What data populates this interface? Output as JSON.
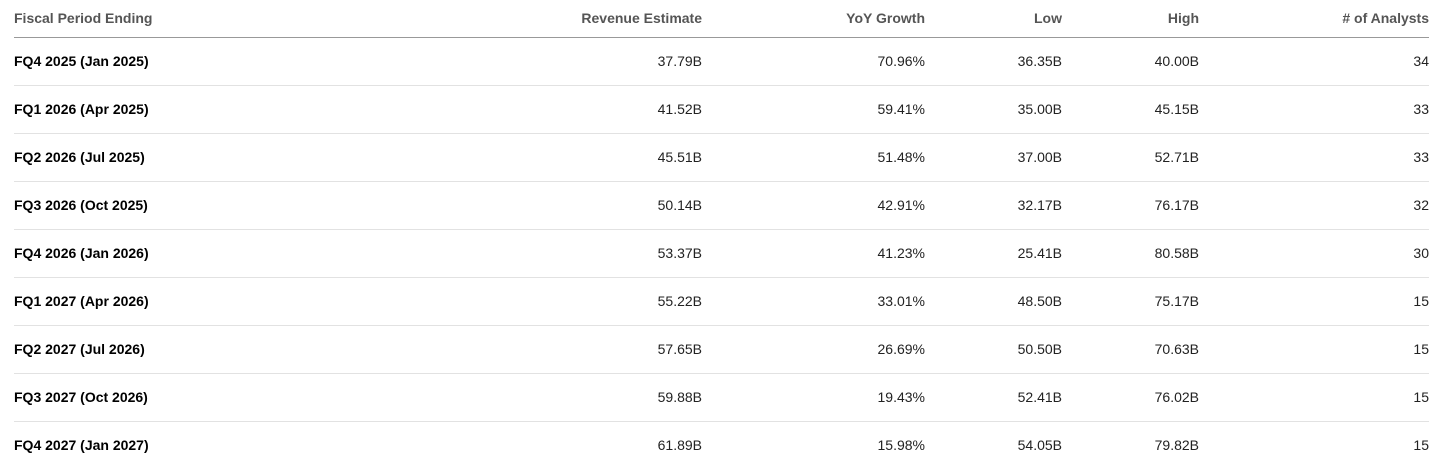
{
  "table": {
    "headers": {
      "period": "Fiscal Period Ending",
      "revenue": "Revenue Estimate",
      "growth": "YoY Growth",
      "low": "Low",
      "high": "High",
      "analysts": "# of Analysts"
    },
    "rows": [
      {
        "period": "FQ4 2025 (Jan 2025)",
        "revenue": "37.79B",
        "growth": "70.96%",
        "low": "36.35B",
        "high": "40.00B",
        "analysts": "34"
      },
      {
        "period": "FQ1 2026 (Apr 2025)",
        "revenue": "41.52B",
        "growth": "59.41%",
        "low": "35.00B",
        "high": "45.15B",
        "analysts": "33"
      },
      {
        "period": "FQ2 2026 (Jul 2025)",
        "revenue": "45.51B",
        "growth": "51.48%",
        "low": "37.00B",
        "high": "52.71B",
        "analysts": "33"
      },
      {
        "period": "FQ3 2026 (Oct 2025)",
        "revenue": "50.14B",
        "growth": "42.91%",
        "low": "32.17B",
        "high": "76.17B",
        "analysts": "32"
      },
      {
        "period": "FQ4 2026 (Jan 2026)",
        "revenue": "53.37B",
        "growth": "41.23%",
        "low": "25.41B",
        "high": "80.58B",
        "analysts": "30"
      },
      {
        "period": "FQ1 2027 (Apr 2026)",
        "revenue": "55.22B",
        "growth": "33.01%",
        "low": "48.50B",
        "high": "75.17B",
        "analysts": "15"
      },
      {
        "period": "FQ2 2027 (Jul 2026)",
        "revenue": "57.65B",
        "growth": "26.69%",
        "low": "50.50B",
        "high": "70.63B",
        "analysts": "15"
      },
      {
        "period": "FQ3 2027 (Oct 2026)",
        "revenue": "59.88B",
        "growth": "19.43%",
        "low": "52.41B",
        "high": "76.02B",
        "analysts": "15"
      },
      {
        "period": "FQ4 2027 (Jan 2027)",
        "revenue": "61.89B",
        "growth": "15.98%",
        "low": "54.05B",
        "high": "79.82B",
        "analysts": "15"
      }
    ]
  }
}
